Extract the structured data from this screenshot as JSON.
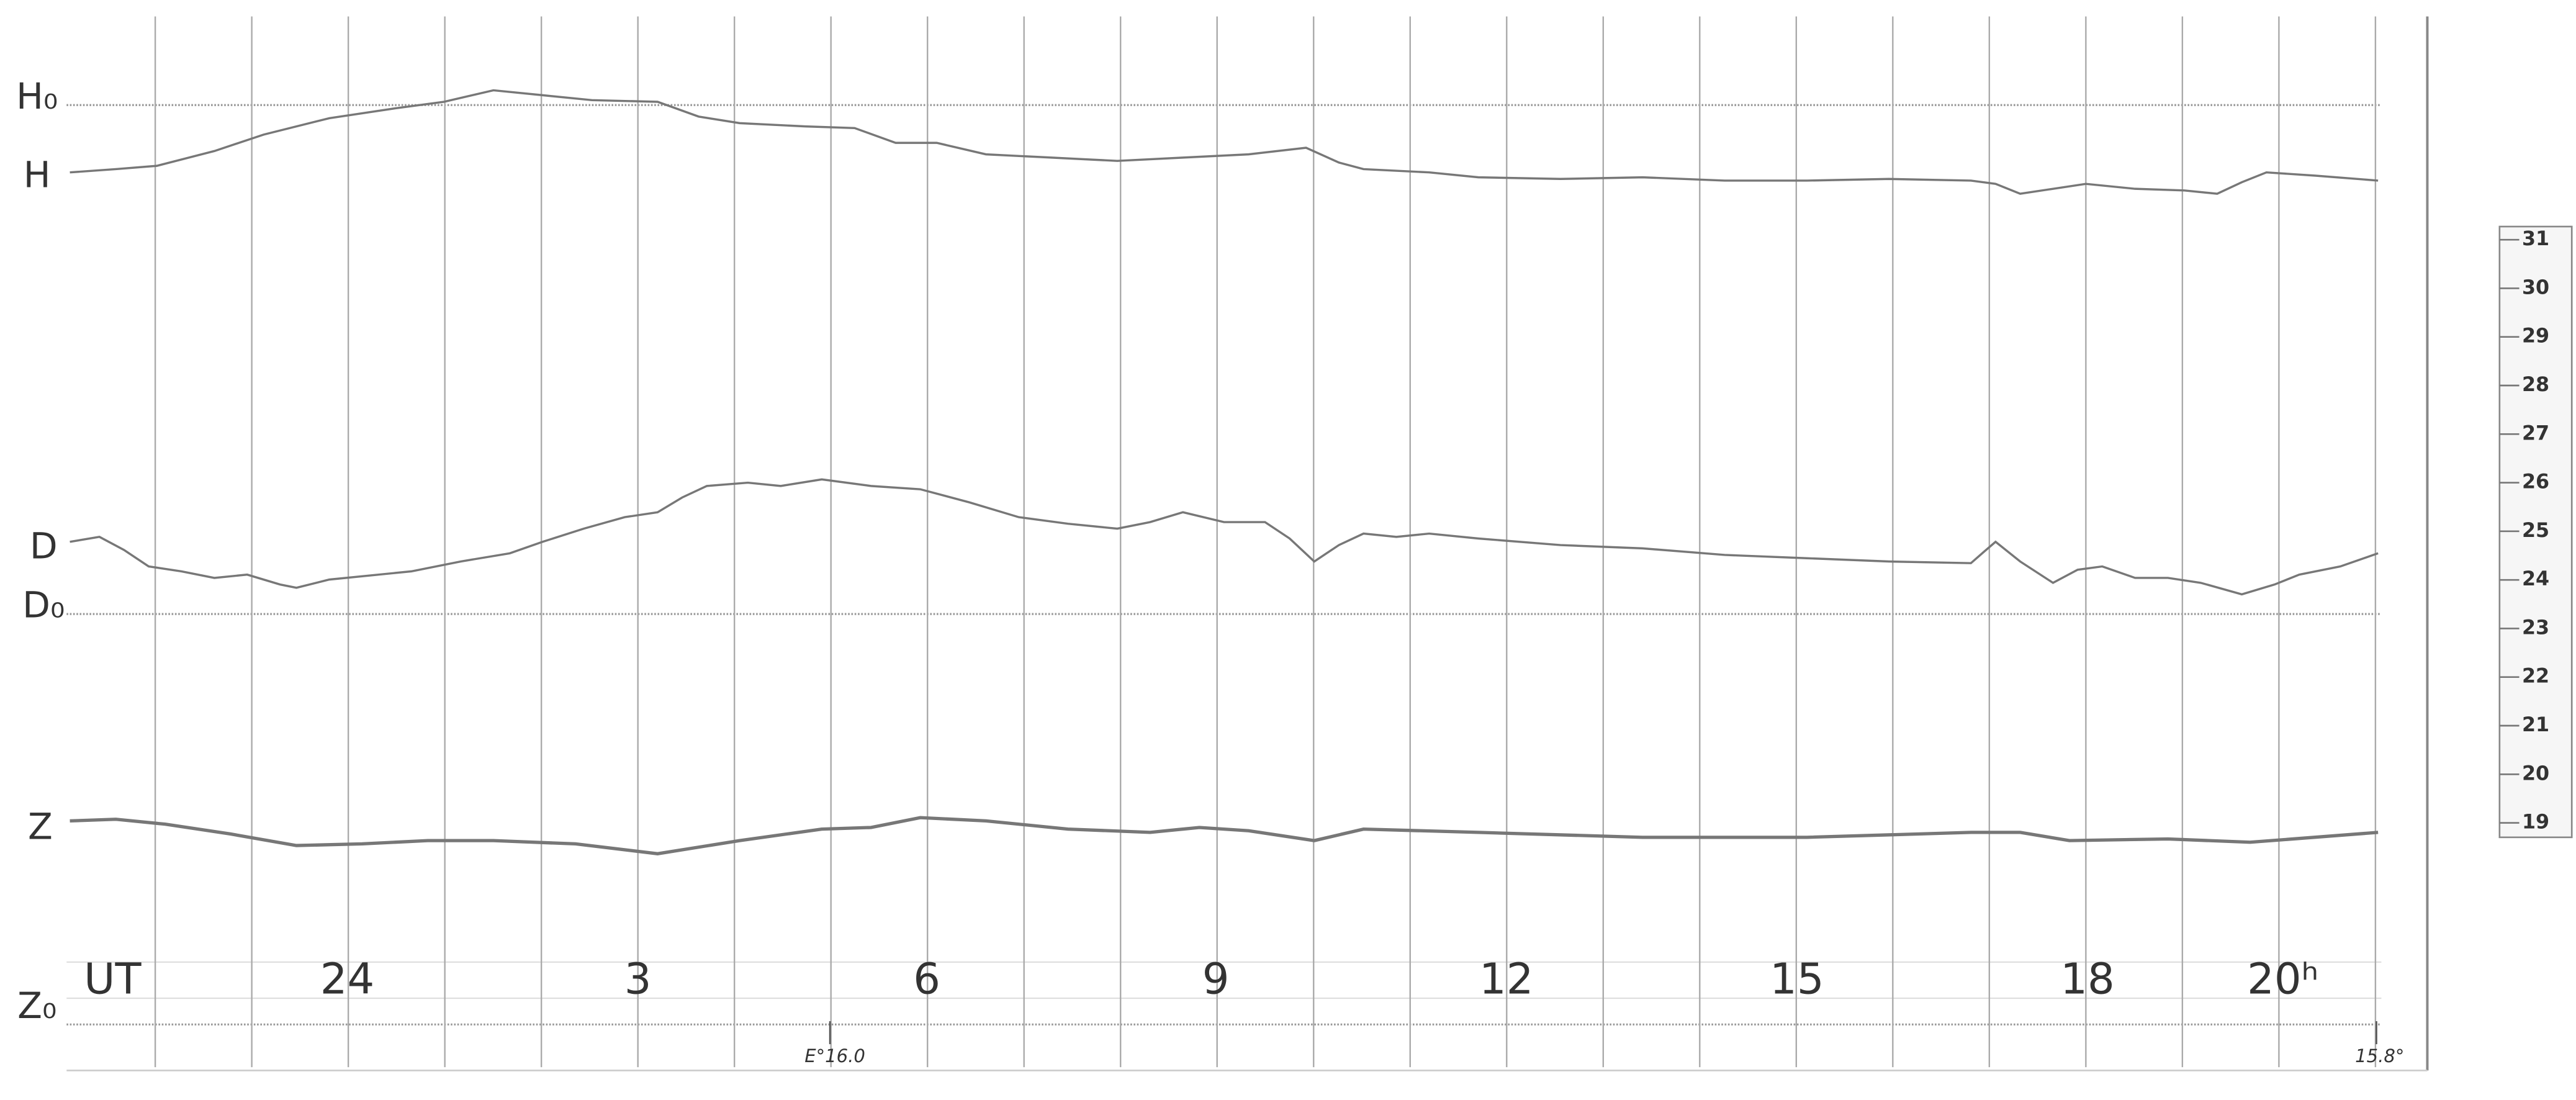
{
  "trace_labels": {
    "h0": "H₀",
    "h": "H",
    "d": "D",
    "d0": "D₀",
    "z": "Z",
    "z0": "Z₀"
  },
  "time_axis": {
    "unit": "UT",
    "hours": [
      "24",
      "3",
      "6",
      "9",
      "12",
      "15",
      "18",
      "20ʰ"
    ]
  },
  "markers": {
    "start": "E°16.0",
    "end": "15.8°"
  },
  "ruler": [
    "31",
    "30",
    "29",
    "28",
    "27",
    "26",
    "25",
    "24",
    "23",
    "22",
    "21",
    "20",
    "19"
  ]
}
